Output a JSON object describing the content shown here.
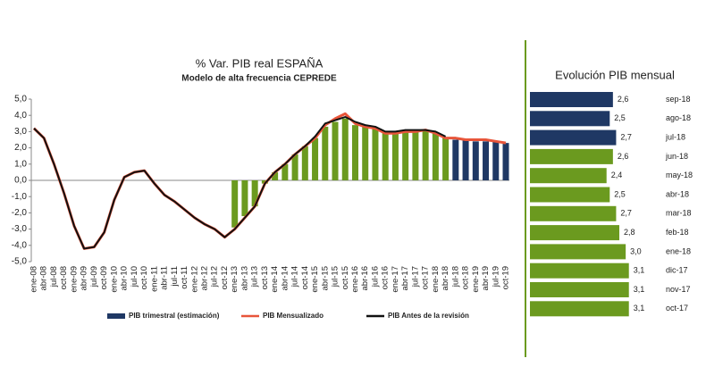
{
  "chart_data": [
    {
      "type": "bar_line",
      "title": "% Var. PIB real ESPAÑA",
      "subtitle": "Modelo de alta frecuencia CEPREDE",
      "categories": [
        "ene-08",
        "abr-08",
        "jul-08",
        "oct-08",
        "ene-09",
        "abr-09",
        "jul-09",
        "oct-09",
        "ene-10",
        "abr-10",
        "jul-10",
        "oct-10",
        "ene-11",
        "abr-11",
        "jul-11",
        "oct-11",
        "ene-12",
        "abr-12",
        "jul-12",
        "oct-12",
        "ene-13",
        "abr-13",
        "jul-13",
        "oct-13",
        "ene-14",
        "abr-14",
        "jul-14",
        "oct-14",
        "ene-15",
        "abr-15",
        "jul-15",
        "oct-15",
        "ene-16",
        "abr-16",
        "jul-16",
        "oct-16",
        "ene-17",
        "abr-17",
        "jul-17",
        "oct-17",
        "ene-18",
        "abr-18",
        "jul-18",
        "oct-18",
        "ene-19",
        "abr-19",
        "jul-19",
        "oct-19"
      ],
      "ylim": [
        -5,
        5
      ],
      "yticks": [
        {
          "value": -5,
          "label": "-5,0"
        },
        {
          "value": -4,
          "label": "-4,0"
        },
        {
          "value": -3,
          "label": "-3,0"
        },
        {
          "value": -2,
          "label": "-2,0"
        },
        {
          "value": -1,
          "label": "-1,0"
        },
        {
          "value": 0,
          "label": "0,0"
        },
        {
          "value": 1,
          "label": "1,0"
        },
        {
          "value": 2,
          "label": "2,0"
        },
        {
          "value": 3,
          "label": "3,0"
        },
        {
          "value": 4,
          "label": "4,0"
        },
        {
          "value": 5,
          "label": "5,0"
        }
      ],
      "series": [
        {
          "name": "PIB trimestral (estimación)",
          "type": "bar",
          "color": "#1f3864",
          "values": [
            null,
            null,
            null,
            null,
            null,
            null,
            null,
            null,
            null,
            null,
            null,
            null,
            null,
            null,
            null,
            null,
            null,
            null,
            null,
            null,
            -2.9,
            -2.2,
            -1.6,
            -0.2,
            0.5,
            1.0,
            1.6,
            2.1,
            2.6,
            3.3,
            3.6,
            3.8,
            3.4,
            3.3,
            3.2,
            2.9,
            2.9,
            3.0,
            3.0,
            3.1,
            2.9,
            2.6,
            2.5,
            2.5,
            2.4,
            2.4,
            2.4,
            2.3
          ],
          "colors": [
            null,
            null,
            null,
            null,
            null,
            null,
            null,
            null,
            null,
            null,
            null,
            null,
            null,
            null,
            null,
            null,
            null,
            null,
            null,
            null,
            "#6b9a1f",
            "#6b9a1f",
            "#6b9a1f",
            "#6b9a1f",
            "#6b9a1f",
            "#6b9a1f",
            "#6b9a1f",
            "#6b9a1f",
            "#6b9a1f",
            "#6b9a1f",
            "#6b9a1f",
            "#6b9a1f",
            "#6b9a1f",
            "#6b9a1f",
            "#6b9a1f",
            "#6b9a1f",
            "#6b9a1f",
            "#6b9a1f",
            "#6b9a1f",
            "#6b9a1f",
            "#6b9a1f",
            "#6b9a1f",
            "#1f3864",
            "#1f3864",
            "#1f3864",
            "#1f3864",
            "#1f3864",
            "#1f3864"
          ]
        },
        {
          "name": "PIB Mensualizado",
          "type": "line",
          "color": "#e8553a",
          "values": [
            3.2,
            2.6,
            1.0,
            -0.8,
            -2.8,
            -4.2,
            -4.1,
            -3.2,
            -1.2,
            0.2,
            0.5,
            0.6,
            -0.2,
            -0.9,
            -1.3,
            -1.8,
            -2.3,
            -2.7,
            -3.0,
            -3.5,
            -3.0,
            -2.3,
            -1.6,
            -0.2,
            0.5,
            1.0,
            1.6,
            2.1,
            2.6,
            3.4,
            3.8,
            4.1,
            3.5,
            3.3,
            3.2,
            2.9,
            2.9,
            3.0,
            3.0,
            3.1,
            2.9,
            2.6,
            2.6,
            2.5,
            2.5,
            2.5,
            2.4,
            2.3
          ]
        },
        {
          "name": "PIB Antes de la revisión",
          "type": "line",
          "color": "#111111",
          "values": [
            3.2,
            2.6,
            1.0,
            -0.8,
            -2.8,
            -4.2,
            -4.1,
            -3.2,
            -1.2,
            0.2,
            0.5,
            0.6,
            -0.2,
            -0.9,
            -1.3,
            -1.8,
            -2.3,
            -2.7,
            -3.0,
            -3.5,
            -3.0,
            -2.3,
            -1.6,
            -0.2,
            0.5,
            1.0,
            1.6,
            2.1,
            2.7,
            3.5,
            3.7,
            3.9,
            3.6,
            3.4,
            3.3,
            3.0,
            3.0,
            3.1,
            3.1,
            3.1,
            3.0,
            2.7,
            null,
            null,
            null,
            null,
            null,
            null
          ]
        }
      ]
    },
    {
      "type": "hbar",
      "title": "Evolución PIB mensual",
      "categories": [
        "sep-18",
        "ago-18",
        "jul-18",
        "jun-18",
        "may-18",
        "abr-18",
        "mar-18",
        "feb-18",
        "ene-18",
        "dic-17",
        "nov-17",
        "oct-17"
      ],
      "values": [
        2.6,
        2.5,
        2.7,
        2.6,
        2.4,
        2.5,
        2.7,
        2.8,
        3.0,
        3.1,
        3.1,
        3.1
      ],
      "value_labels": [
        "2,6",
        "2,5",
        "2,7",
        "2,6",
        "2,4",
        "2,5",
        "2,7",
        "2,8",
        "3,0",
        "3,1",
        "3,1",
        "3,1"
      ],
      "colors": [
        "#1f3864",
        "#1f3864",
        "#1f3864",
        "#6b9a1f",
        "#6b9a1f",
        "#6b9a1f",
        "#6b9a1f",
        "#6b9a1f",
        "#6b9a1f",
        "#6b9a1f",
        "#6b9a1f",
        "#6b9a1f"
      ],
      "xlim": [
        0,
        3.5
      ]
    }
  ]
}
